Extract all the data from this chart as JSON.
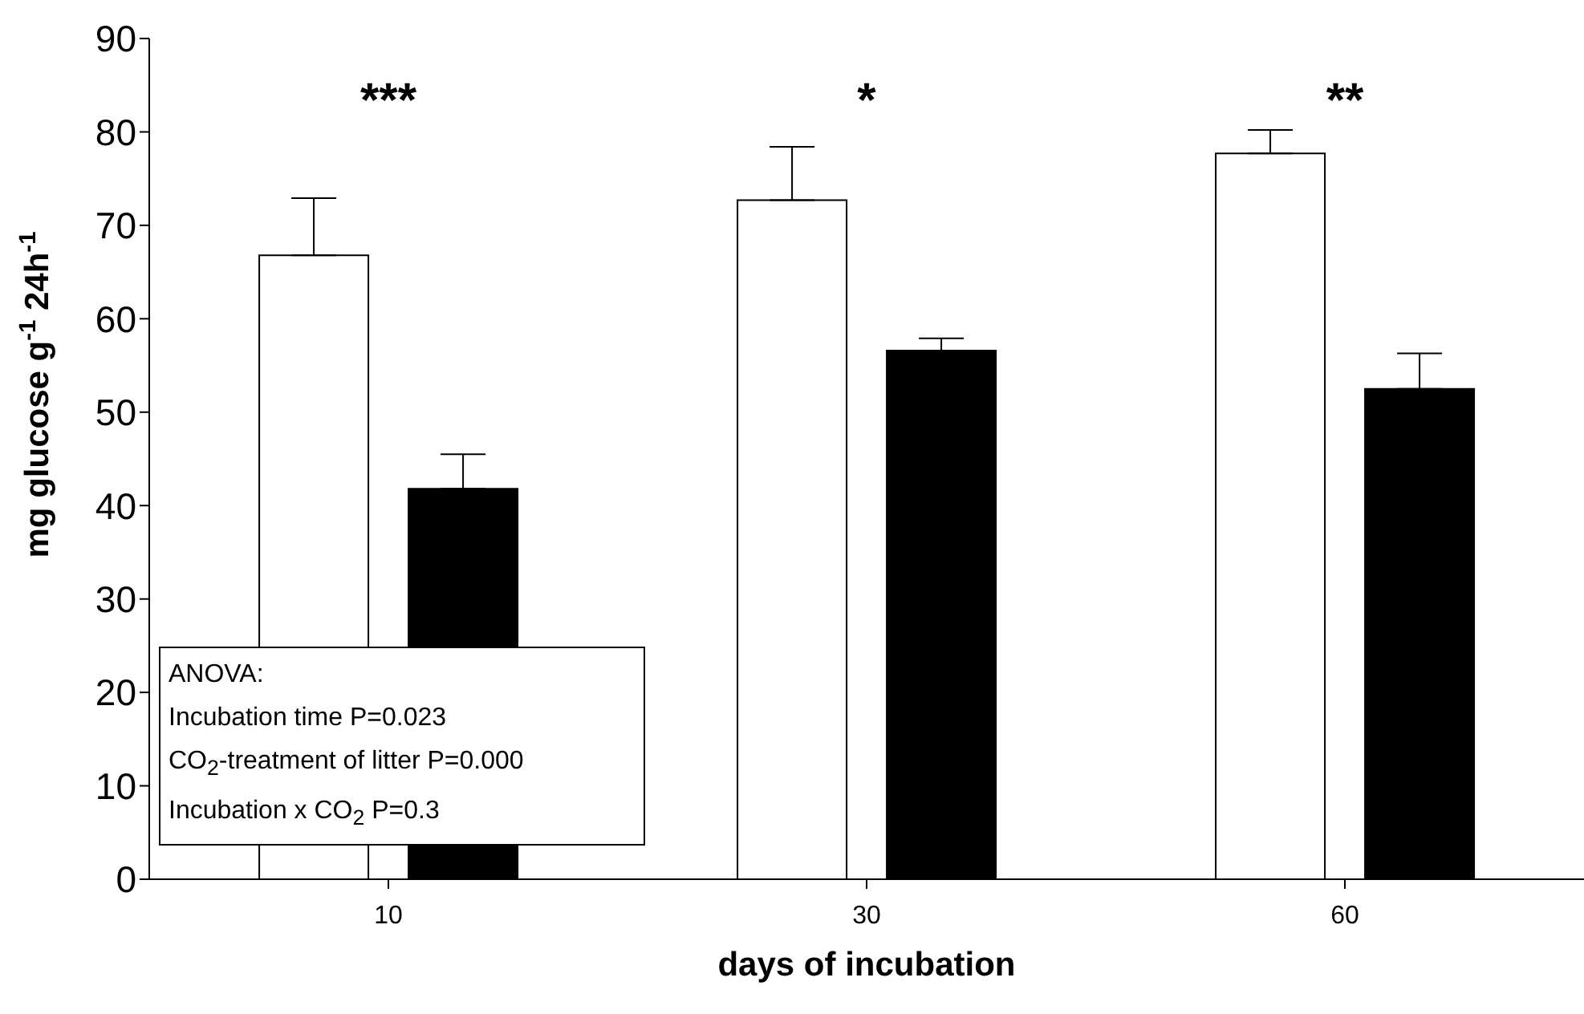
{
  "chart_data": {
    "type": "bar",
    "xlabel": "days of incubation",
    "ylabel": "mg glucose g$^{-1}$ 24h$^{-1}$",
    "categories": [
      "10",
      "30",
      "60"
    ],
    "series": [
      {
        "color": "#ffffff",
        "values": [
          66.8,
          72.7,
          77.7
        ],
        "errors": [
          [
            66.8,
            72.9
          ],
          [
            72.7,
            78.4
          ],
          [
            77.7,
            80.2
          ]
        ]
      },
      {
        "color": "#000000",
        "values": [
          41.8,
          56.6,
          52.5
        ],
        "errors": [
          [
            41.8,
            45.5
          ],
          [
            56.6,
            57.9
          ],
          [
            52.5,
            56.3
          ]
        ]
      }
    ],
    "ylim": [
      0,
      90
    ],
    "yticks": [
      0,
      10,
      20,
      30,
      40,
      50,
      60,
      70,
      80,
      90
    ],
    "grid": false,
    "legend": false,
    "annotations": [
      "***",
      "*",
      "**",
      "ANOVA:",
      "Incubation time P=0.023",
      "CO$_{2}$-treatment of litter P=0.000",
      "Incubation x CO$_{2}$ P=0.3"
    ]
  }
}
